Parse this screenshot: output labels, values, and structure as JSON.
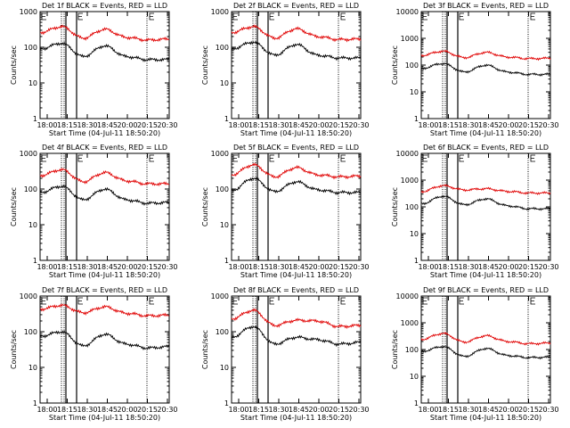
{
  "colors": {
    "events": "#000000",
    "lld": "#e00000",
    "axes": "#000000",
    "background": "#ffffff"
  },
  "time_ticks": [
    "18:00",
    "18:15",
    "18:30",
    "18:45",
    "20:00",
    "20:15",
    "20:30"
  ],
  "y_ticks": [
    "1",
    "10",
    "100",
    "1000",
    "10000"
  ],
  "ylabel": "Counts/sec",
  "xlabel": "Start Time (04-Jul-11 18:50:20)",
  "chart_data": [
    {
      "type": "line",
      "title": "Det 1f BLACK = Events, RED = LLD",
      "ylabel": "Counts/sec",
      "xlabel": "Start Time (04-Jul-11 18:50:20)",
      "y_scale": "log",
      "ylim": [
        1,
        1000
      ],
      "categories": [
        "18:00",
        "18:15",
        "18:30",
        "18:45",
        "20:00",
        "20:15",
        "20:30"
      ],
      "series": [
        {
          "color": "#e00000",
          "values": [
            260,
            380,
            180,
            320,
            190,
            160,
            170
          ]
        },
        {
          "color": "#000000",
          "values": [
            90,
            130,
            55,
            110,
            55,
            45,
            45
          ]
        }
      ]
    },
    {
      "type": "line",
      "title": "Det 2f BLACK = Events, RED = LLD",
      "ylabel": "Counts/sec",
      "xlabel": "Start Time (04-Jul-11 18:50:20)",
      "y_scale": "log",
      "ylim": [
        1,
        1000
      ],
      "categories": [
        "18:00",
        "18:15",
        "18:30",
        "18:45",
        "20:00",
        "20:15",
        "20:30"
      ],
      "series": [
        {
          "color": "#e00000",
          "values": [
            260,
            380,
            180,
            330,
            200,
            165,
            170
          ]
        },
        {
          "color": "#000000",
          "values": [
            90,
            140,
            60,
            120,
            60,
            50,
            50
          ]
        }
      ]
    },
    {
      "type": "line",
      "title": "Det 3f BLACK = Events, RED = LLD",
      "ylabel": "Counts/sec",
      "xlabel": "Start Time (04-Jul-11 18:50:20)",
      "y_scale": "log",
      "ylim": [
        1,
        10000
      ],
      "categories": [
        "18:00",
        "18:15",
        "18:30",
        "18:45",
        "20:00",
        "20:15",
        "20:30"
      ],
      "series": [
        {
          "color": "#e00000",
          "values": [
            230,
            330,
            190,
            300,
            200,
            175,
            180
          ]
        },
        {
          "color": "#000000",
          "values": [
            75,
            115,
            55,
            100,
            55,
            45,
            45
          ]
        }
      ]
    },
    {
      "type": "line",
      "title": "Det 4f BLACK = Events, RED = LLD",
      "ylabel": "Counts/sec",
      "xlabel": "Start Time (04-Jul-11 18:50:20)",
      "y_scale": "log",
      "ylim": [
        1,
        1000
      ],
      "categories": [
        "18:00",
        "18:15",
        "18:30",
        "18:45",
        "20:00",
        "20:15",
        "20:30"
      ],
      "series": [
        {
          "color": "#e00000",
          "values": [
            240,
            350,
            160,
            290,
            170,
            140,
            140
          ]
        },
        {
          "color": "#000000",
          "values": [
            80,
            120,
            50,
            100,
            50,
            40,
            42
          ]
        }
      ]
    },
    {
      "type": "line",
      "title": "Det 5f BLACK = Events, RED = LLD",
      "ylabel": "Counts/sec",
      "xlabel": "Start Time (04-Jul-11 18:50:20)",
      "y_scale": "log",
      "ylim": [
        1,
        1000
      ],
      "categories": [
        "18:00",
        "18:15",
        "18:30",
        "18:45",
        "20:00",
        "20:15",
        "20:30"
      ],
      "series": [
        {
          "color": "#e00000",
          "values": [
            250,
            480,
            220,
            400,
            250,
            220,
            230
          ]
        },
        {
          "color": "#000000",
          "values": [
            90,
            200,
            85,
            160,
            95,
            80,
            80
          ]
        }
      ]
    },
    {
      "type": "line",
      "title": "Det 6f BLACK = Events, RED = LLD",
      "ylabel": "Counts/sec",
      "xlabel": "Start Time (04-Jul-11 18:50:20)",
      "y_scale": "log",
      "ylim": [
        1,
        10000
      ],
      "categories": [
        "18:00",
        "18:15",
        "18:30",
        "18:45",
        "20:00",
        "20:15",
        "20:30"
      ],
      "series": [
        {
          "color": "#e00000",
          "values": [
            370,
            620,
            430,
            480,
            380,
            330,
            330
          ]
        },
        {
          "color": "#000000",
          "values": [
            130,
            250,
            120,
            200,
            110,
            85,
            85
          ]
        }
      ]
    },
    {
      "type": "line",
      "title": "Det 7f BLACK = Events, RED = LLD",
      "ylabel": "Counts/sec",
      "xlabel": "Start Time (04-Jul-11 18:50:20)",
      "y_scale": "log",
      "ylim": [
        1,
        1000
      ],
      "categories": [
        "18:00",
        "18:15",
        "18:30",
        "18:45",
        "20:00",
        "20:15",
        "20:30"
      ],
      "series": [
        {
          "color": "#e00000",
          "values": [
            430,
            550,
            340,
            500,
            330,
            280,
            290
          ]
        },
        {
          "color": "#000000",
          "values": [
            75,
            100,
            40,
            85,
            45,
            35,
            38
          ]
        }
      ]
    },
    {
      "type": "line",
      "title": "Det 8f BLACK = Events, RED = LLD",
      "ylabel": "Counts/sec",
      "xlabel": "Start Time (04-Jul-11 18:50:20)",
      "y_scale": "log",
      "ylim": [
        1,
        1000
      ],
      "categories": [
        "18:00",
        "18:15",
        "18:30",
        "18:45",
        "20:00",
        "20:15",
        "20:30"
      ],
      "series": [
        {
          "color": "#e00000",
          "values": [
            230,
            400,
            150,
            210,
            200,
            140,
            150
          ]
        },
        {
          "color": "#000000",
          "values": [
            70,
            140,
            45,
            70,
            60,
            45,
            50
          ]
        }
      ]
    },
    {
      "type": "line",
      "title": "Det 9f BLACK = Events, RED = LLD",
      "ylabel": "Counts/sec",
      "xlabel": "Start Time (04-Jul-11 18:50:20)",
      "y_scale": "log",
      "ylim": [
        1,
        10000
      ],
      "categories": [
        "18:00",
        "18:15",
        "18:30",
        "18:45",
        "20:00",
        "20:15",
        "20:30"
      ],
      "series": [
        {
          "color": "#e00000",
          "values": [
            240,
            400,
            190,
            330,
            200,
            165,
            175
          ]
        },
        {
          "color": "#000000",
          "values": [
            85,
            130,
            55,
            110,
            60,
            50,
            52
          ]
        }
      ]
    }
  ]
}
